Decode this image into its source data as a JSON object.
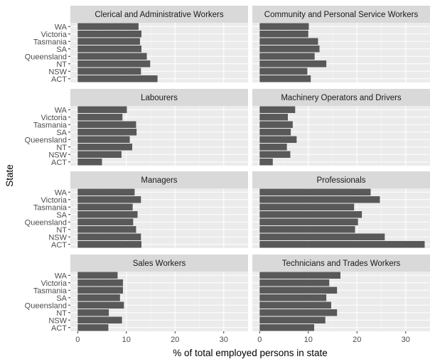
{
  "chart_data": {
    "type": "bar",
    "orientation": "horizontal",
    "facet_layout": {
      "columns": 2,
      "rows": 4
    },
    "xlabel": "% of total employed persons in state",
    "ylabel": "State",
    "xlim": [
      -1.5,
      35
    ],
    "x_ticks": [
      0,
      10,
      20,
      30
    ],
    "grid": true,
    "bar_color": "#595959",
    "categories": [
      "WA",
      "Victoria",
      "Tasmania",
      "SA",
      "Queensland",
      "NT",
      "NSW",
      "ACT"
    ],
    "facets": [
      {
        "title": "Clerical and Administrative Workers",
        "values": [
          12.5,
          13.1,
          12.8,
          13.1,
          14.2,
          14.9,
          13.0,
          16.4
        ]
      },
      {
        "title": "Community and Personal Service Workers",
        "values": [
          10.1,
          10.0,
          12.0,
          12.3,
          11.3,
          13.7,
          9.8,
          10.5
        ]
      },
      {
        "title": "Labourers",
        "values": [
          10.1,
          9.2,
          12.0,
          12.1,
          10.7,
          11.2,
          9.0,
          5.0
        ]
      },
      {
        "title": "Machinery Operators and Drivers",
        "values": [
          7.3,
          5.8,
          6.8,
          6.4,
          7.6,
          5.6,
          6.3,
          2.7
        ]
      },
      {
        "title": "Managers",
        "values": [
          11.7,
          13.0,
          11.3,
          12.3,
          11.4,
          12.0,
          13.0,
          13.1
        ]
      },
      {
        "title": "Professionals",
        "values": [
          22.8,
          24.7,
          19.4,
          21.0,
          20.2,
          19.6,
          25.7,
          33.9
        ]
      },
      {
        "title": "Sales Workers",
        "values": [
          8.2,
          9.3,
          9.3,
          8.7,
          9.5,
          6.4,
          9.1,
          6.3
        ]
      },
      {
        "title": "Technicians and Trades Workers",
        "values": [
          16.6,
          14.3,
          15.9,
          13.7,
          14.7,
          15.9,
          13.5,
          11.2
        ]
      }
    ]
  }
}
